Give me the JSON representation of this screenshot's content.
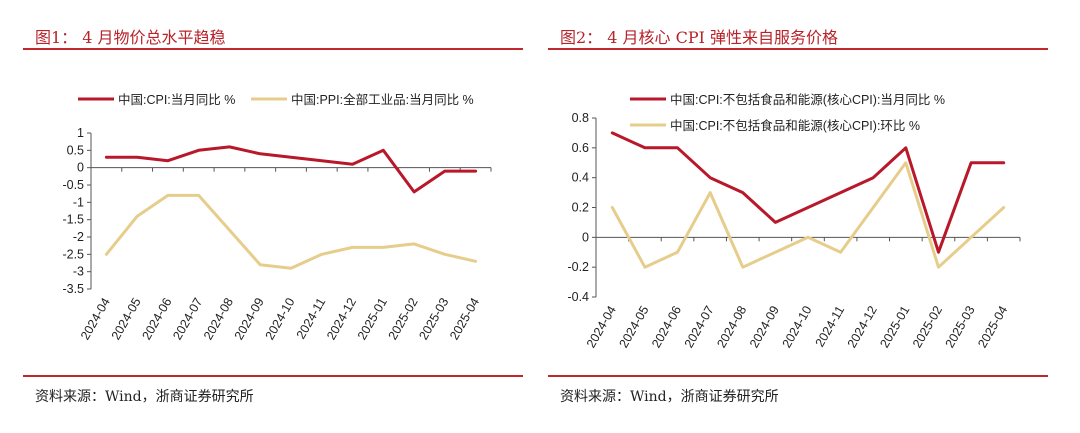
{
  "panels": [
    {
      "title": "图1：  4 月物价总水平趋稳",
      "source": "资料来源：Wind，浙商证券研究所"
    },
    {
      "title": "图2：  4 月核心 CPI 弹性来自服务价格",
      "source": "资料来源：Wind，浙商证券研究所"
    }
  ],
  "chart_data": [
    {
      "type": "line",
      "categories": [
        "2024-04",
        "2024-05",
        "2024-06",
        "2024-07",
        "2024-08",
        "2024-09",
        "2024-10",
        "2024-11",
        "2024-12",
        "2025-01",
        "2025-02",
        "2025-03",
        "2025-04"
      ],
      "yticks": [
        "1",
        "0.5",
        "0",
        "-0.5",
        "-1",
        "-1.5",
        "-2",
        "-2.5",
        "-3",
        "-3.5"
      ],
      "ylim": [
        -3.5,
        1
      ],
      "series": [
        {
          "name": "中国:CPI:当月同比 %",
          "color": "#b8182a",
          "values": [
            0.3,
            0.3,
            0.2,
            0.5,
            0.6,
            0.4,
            0.3,
            0.2,
            0.1,
            0.5,
            -0.7,
            -0.1,
            -0.1
          ]
        },
        {
          "name": "中国:PPI:全部工业品:当月同比 %",
          "color": "#e6cd8c",
          "values": [
            -2.5,
            -1.4,
            -0.8,
            -0.8,
            -1.8,
            -2.8,
            -2.9,
            -2.5,
            -2.3,
            -2.3,
            -2.2,
            -2.5,
            -2.7
          ]
        }
      ],
      "legend": "top"
    },
    {
      "type": "line",
      "categories": [
        "2024-04",
        "2024-05",
        "2024-06",
        "2024-07",
        "2024-08",
        "2024-09",
        "2024-10",
        "2024-11",
        "2024-12",
        "2025-01",
        "2025-02",
        "2025-03",
        "2025-04"
      ],
      "yticks": [
        "0.8",
        "0.6",
        "0.4",
        "0.2",
        "0",
        "-0.2",
        "-0.4"
      ],
      "ylim": [
        -0.4,
        0.8
      ],
      "series": [
        {
          "name": "中国:CPI:不包括食品和能源(核心CPI):当月同比 %",
          "color": "#b8182a",
          "values": [
            0.7,
            0.6,
            0.6,
            0.4,
            0.3,
            0.1,
            0.2,
            0.3,
            0.4,
            0.6,
            -0.1,
            0.5,
            0.5
          ]
        },
        {
          "name": "中国:CPI:不包括食品和能源(核心CPI):环比 %",
          "color": "#e6cd8c",
          "values": [
            0.2,
            -0.2,
            -0.1,
            0.3,
            -0.2,
            -0.1,
            0.0,
            -0.1,
            0.2,
            0.5,
            -0.2,
            0.0,
            0.2
          ]
        }
      ],
      "legend": "top"
    }
  ]
}
